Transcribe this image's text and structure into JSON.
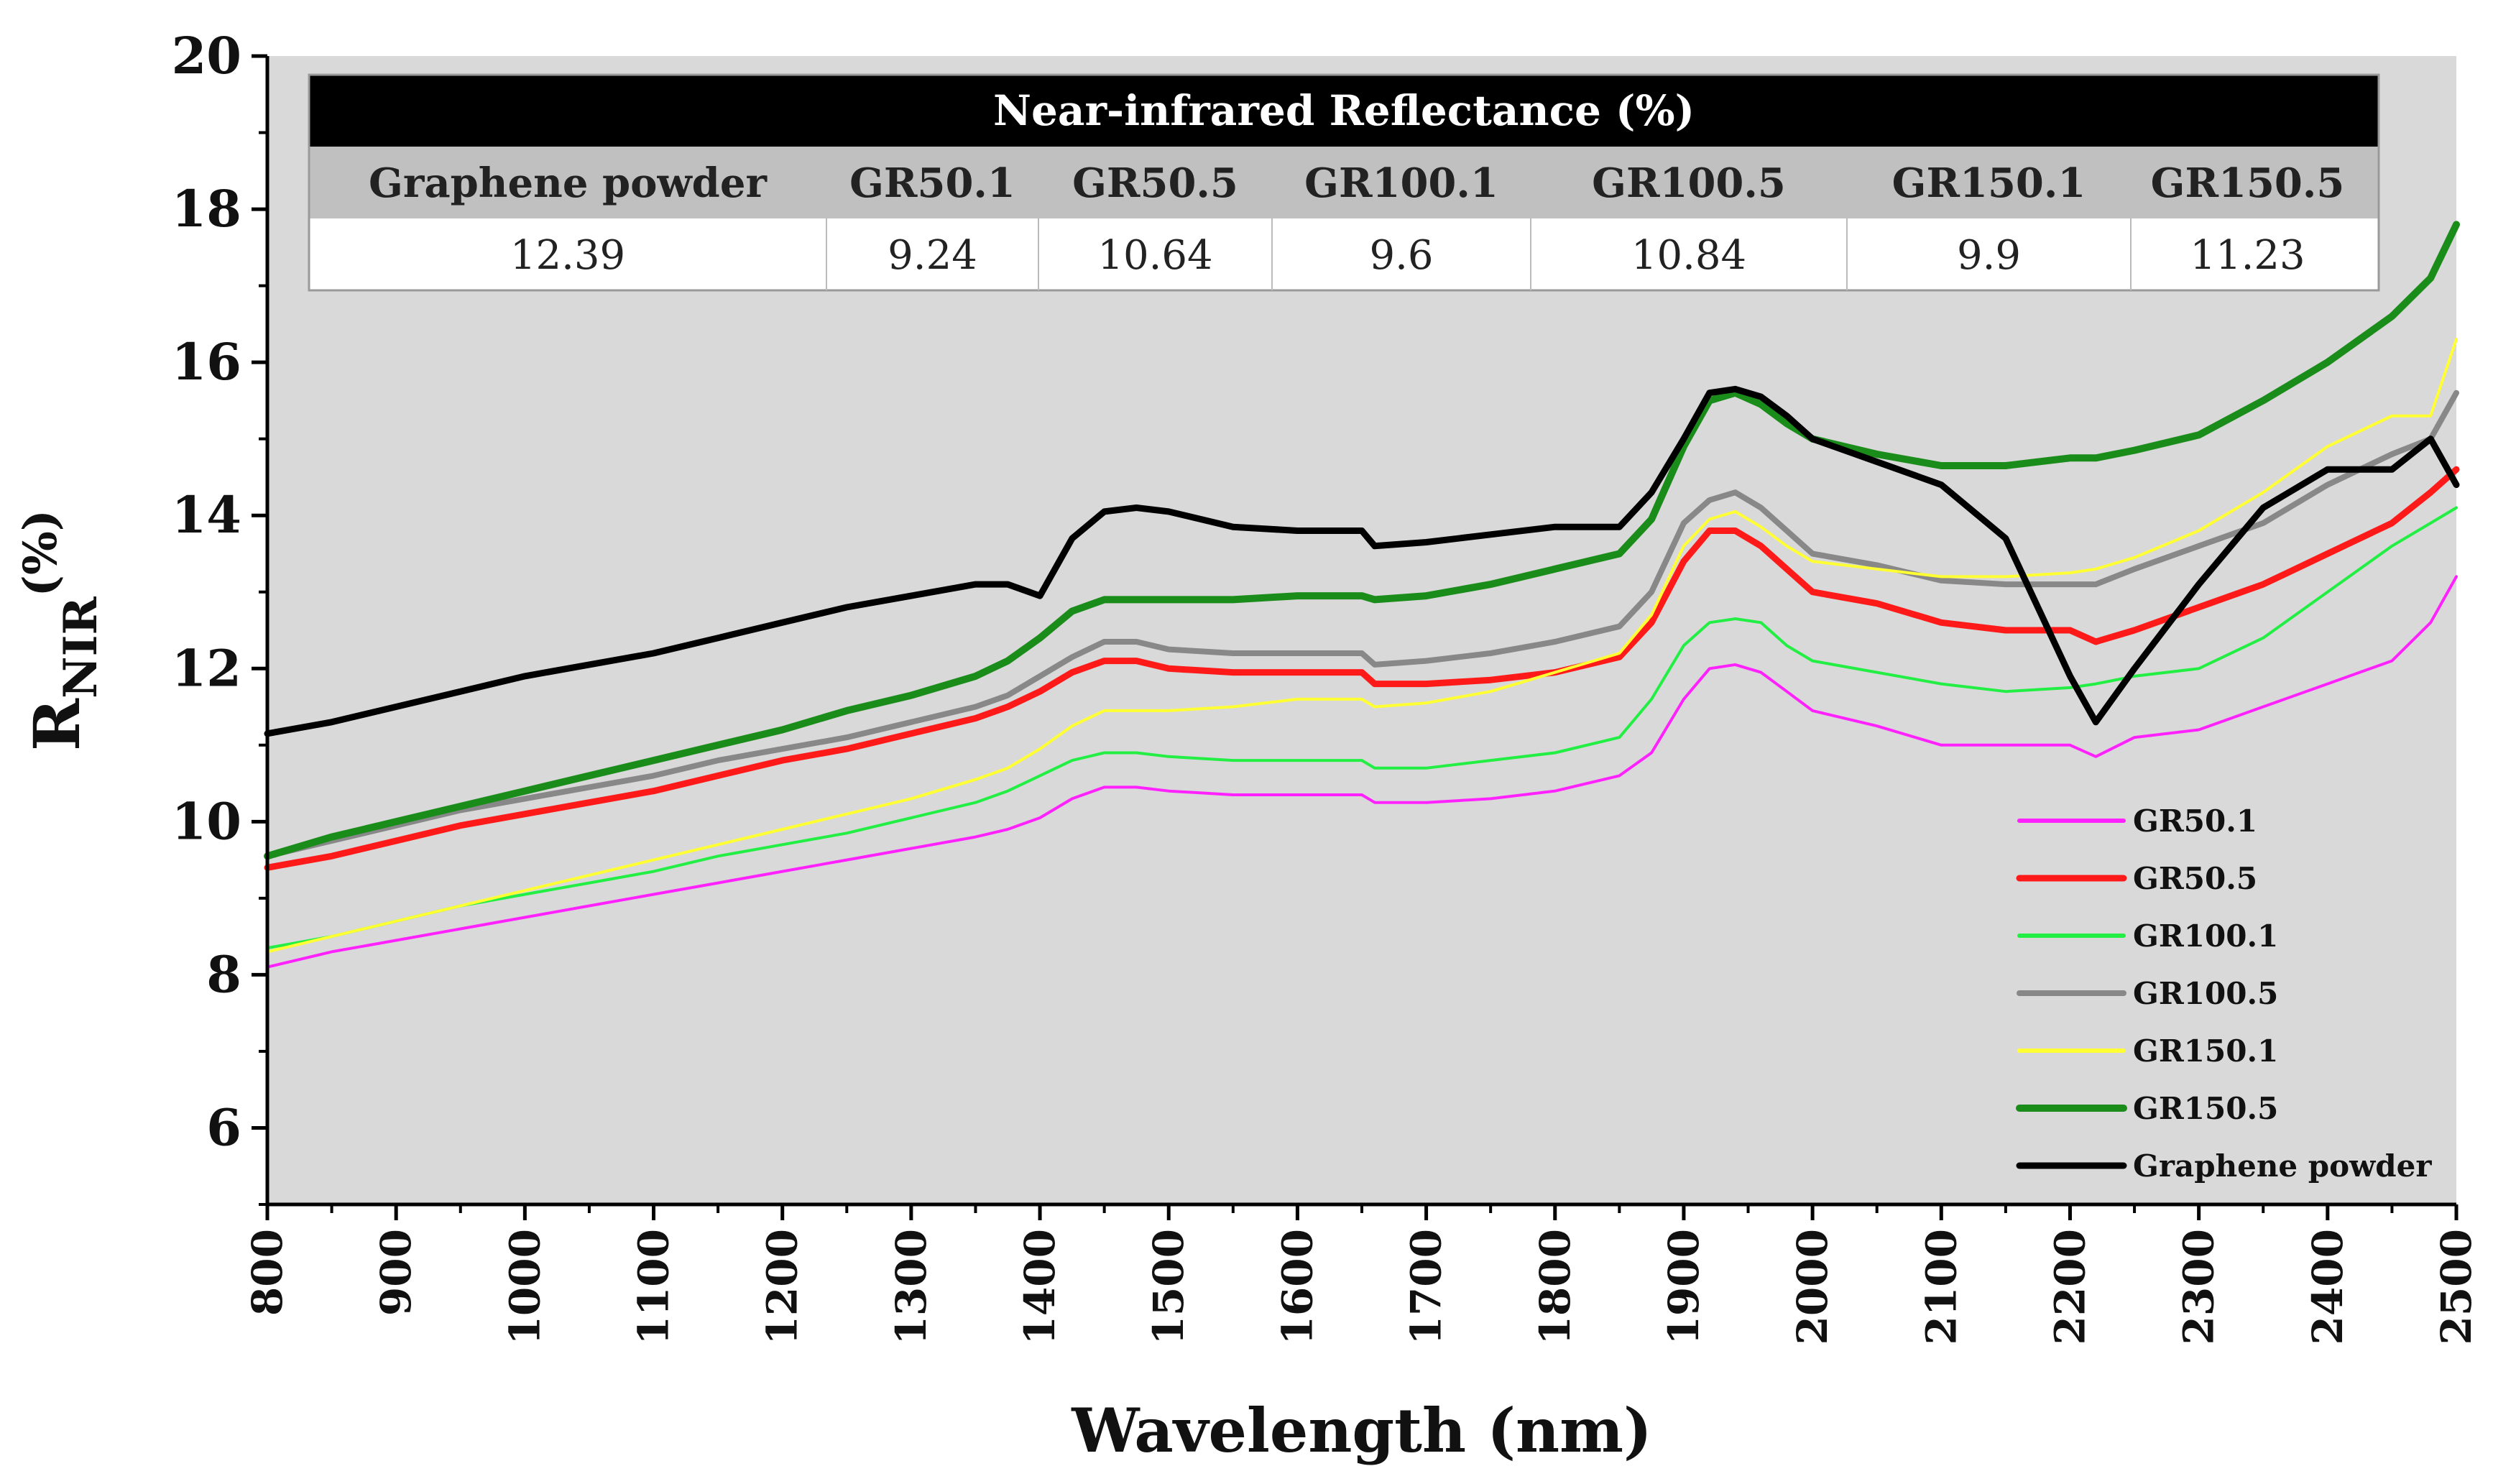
{
  "chart_data": {
    "type": "line",
    "title": "",
    "xlabel": "Wavelength (nm)",
    "ylabel_main": "R",
    "ylabel_sub": "NIR",
    "ylabel_sup": "(%)",
    "xlim": [
      800,
      2500
    ],
    "ylim": [
      5,
      20
    ],
    "x_ticks": [
      "800",
      "900",
      "1000",
      "1100",
      "1200",
      "1300",
      "1400",
      "1500",
      "1600",
      "1700",
      "1800",
      "1900",
      "2000",
      "2100",
      "2200",
      "2300",
      "2400",
      "2500"
    ],
    "y_ticks": [
      "6",
      "8",
      "10",
      "12",
      "14",
      "16",
      "18",
      "20"
    ],
    "grid": false,
    "legend_position": "bottom-right",
    "background": "#d9d9d9",
    "x": [
      800,
      850,
      900,
      950,
      1000,
      1050,
      1100,
      1150,
      1200,
      1250,
      1300,
      1350,
      1375,
      1400,
      1425,
      1450,
      1475,
      1500,
      1550,
      1600,
      1650,
      1660,
      1700,
      1750,
      1800,
      1850,
      1875,
      1900,
      1920,
      1940,
      1960,
      1980,
      2000,
      2050,
      2100,
      2150,
      2200,
      2220,
      2250,
      2300,
      2350,
      2400,
      2450,
      2480,
      2500
    ],
    "series": [
      {
        "name": "GR50.1",
        "color": "#ff22ff",
        "width": 4,
        "values": [
          8.1,
          8.3,
          8.45,
          8.6,
          8.75,
          8.9,
          9.05,
          9.2,
          9.35,
          9.5,
          9.65,
          9.8,
          9.9,
          10.05,
          10.3,
          10.45,
          10.45,
          10.4,
          10.35,
          10.35,
          10.35,
          10.25,
          10.25,
          10.3,
          10.4,
          10.6,
          10.9,
          11.6,
          12.0,
          12.05,
          11.95,
          11.7,
          11.45,
          11.25,
          11.0,
          11.0,
          11.0,
          10.85,
          11.1,
          11.2,
          11.5,
          11.8,
          12.1,
          12.6,
          13.2
        ]
      },
      {
        "name": "GR50.5",
        "color": "#ff1a1a",
        "width": 9,
        "values": [
          9.4,
          9.55,
          9.75,
          9.95,
          10.1,
          10.25,
          10.4,
          10.6,
          10.8,
          10.95,
          11.15,
          11.35,
          11.5,
          11.7,
          11.95,
          12.1,
          12.1,
          12.0,
          11.95,
          11.95,
          11.95,
          11.8,
          11.8,
          11.85,
          11.95,
          12.15,
          12.6,
          13.4,
          13.8,
          13.8,
          13.6,
          13.3,
          13.0,
          12.85,
          12.6,
          12.5,
          12.5,
          12.35,
          12.5,
          12.8,
          13.1,
          13.5,
          13.9,
          14.3,
          14.6
        ]
      },
      {
        "name": "GR100.1",
        "color": "#22ee44",
        "width": 4,
        "values": [
          8.35,
          8.5,
          8.7,
          8.9,
          9.05,
          9.2,
          9.35,
          9.55,
          9.7,
          9.85,
          10.05,
          10.25,
          10.4,
          10.6,
          10.8,
          10.9,
          10.9,
          10.85,
          10.8,
          10.8,
          10.8,
          10.7,
          10.7,
          10.8,
          10.9,
          11.1,
          11.6,
          12.3,
          12.6,
          12.65,
          12.6,
          12.3,
          12.1,
          11.95,
          11.8,
          11.7,
          11.75,
          11.8,
          11.9,
          12.0,
          12.4,
          13.0,
          13.6,
          13.9,
          14.1
        ]
      },
      {
        "name": "GR100.5",
        "color": "#888888",
        "width": 8,
        "values": [
          9.55,
          9.75,
          9.95,
          10.15,
          10.3,
          10.45,
          10.6,
          10.8,
          10.95,
          11.1,
          11.3,
          11.5,
          11.65,
          11.9,
          12.15,
          12.35,
          12.35,
          12.25,
          12.2,
          12.2,
          12.2,
          12.05,
          12.1,
          12.2,
          12.35,
          12.55,
          13.0,
          13.9,
          14.2,
          14.3,
          14.1,
          13.8,
          13.5,
          13.35,
          13.15,
          13.1,
          13.1,
          13.1,
          13.3,
          13.6,
          13.9,
          14.4,
          14.8,
          15.0,
          15.6
        ]
      },
      {
        "name": "GR150.1",
        "color": "#ffff33",
        "width": 4,
        "values": [
          8.3,
          8.5,
          8.7,
          8.9,
          9.1,
          9.3,
          9.5,
          9.7,
          9.9,
          10.1,
          10.3,
          10.55,
          10.7,
          10.95,
          11.25,
          11.45,
          11.45,
          11.45,
          11.5,
          11.6,
          11.6,
          11.5,
          11.55,
          11.7,
          11.95,
          12.2,
          12.7,
          13.6,
          13.95,
          14.05,
          13.85,
          13.6,
          13.4,
          13.3,
          13.2,
          13.2,
          13.25,
          13.3,
          13.45,
          13.8,
          14.3,
          14.9,
          15.3,
          15.3,
          16.3
        ]
      },
      {
        "name": "GR150.5",
        "color": "#1a8c1a",
        "width": 10,
        "values": [
          9.55,
          9.8,
          10.0,
          10.2,
          10.4,
          10.6,
          10.8,
          11.0,
          11.2,
          11.45,
          11.65,
          11.9,
          12.1,
          12.4,
          12.75,
          12.9,
          12.9,
          12.9,
          12.9,
          12.95,
          12.95,
          12.9,
          12.95,
          13.1,
          13.3,
          13.5,
          13.95,
          14.9,
          15.5,
          15.6,
          15.45,
          15.2,
          15.0,
          14.8,
          14.65,
          14.65,
          14.75,
          14.75,
          14.85,
          15.05,
          15.5,
          16.0,
          16.6,
          17.1,
          17.8
        ]
      },
      {
        "name": "Graphene powder",
        "color": "#000000",
        "width": 9,
        "values": [
          11.15,
          11.3,
          11.5,
          11.7,
          11.9,
          12.05,
          12.2,
          12.4,
          12.6,
          12.8,
          12.95,
          13.1,
          13.1,
          12.95,
          13.7,
          14.05,
          14.1,
          14.05,
          13.85,
          13.8,
          13.8,
          13.6,
          13.65,
          13.75,
          13.85,
          13.85,
          14.3,
          15.0,
          15.6,
          15.65,
          15.55,
          15.3,
          15.0,
          14.7,
          14.4,
          13.7,
          11.9,
          11.3,
          12.0,
          13.1,
          14.1,
          14.6,
          14.6,
          15.0,
          14.4
        ]
      }
    ]
  },
  "table": {
    "title": "Near-infrared Reflectance (%)",
    "headers": [
      "Graphene powder",
      "GR50.1",
      "GR50.5",
      "GR100.1",
      "GR100.5",
      "GR150.1",
      "GR150.5"
    ],
    "values": [
      "12.39",
      "9.24",
      "10.64",
      "9.6",
      "10.84",
      "9.9",
      "11.23"
    ]
  }
}
